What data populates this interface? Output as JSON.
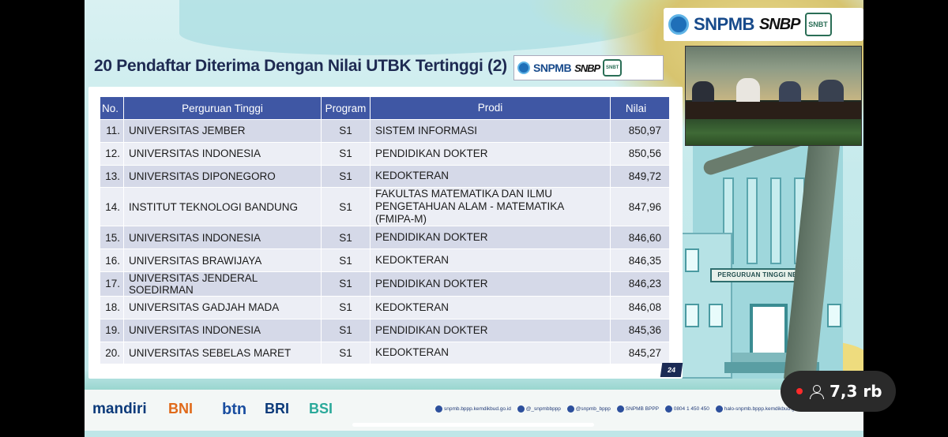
{
  "slide": {
    "title": "20 Pendaftar Diterima Dengan Nilai UTBK Tertinggi (2)",
    "page_number": "24",
    "logo": {
      "snpmb": "SNPMB",
      "snbp": "SNBP",
      "snbt": "SNBT"
    },
    "building_sign": "PERGURUAN TINGGI NEGERI",
    "table": {
      "headers": [
        "No.",
        "Perguruan Tinggi",
        "Program",
        "Prodi",
        "Nilai"
      ],
      "rows": [
        {
          "no": "11.",
          "pt": "UNIVERSITAS JEMBER",
          "program": "S1",
          "prodi": "SISTEM INFORMASI",
          "nilai": "850,97"
        },
        {
          "no": "12.",
          "pt": "UNIVERSITAS INDONESIA",
          "program": "S1",
          "prodi": "PENDIDIKAN DOKTER",
          "nilai": "850,56"
        },
        {
          "no": "13.",
          "pt": "UNIVERSITAS DIPONEGORO",
          "program": "S1",
          "prodi": "KEDOKTERAN",
          "nilai": "849,72"
        },
        {
          "no": "14.",
          "pt": "INSTITUT TEKNOLOGI BANDUNG",
          "program": "S1",
          "prodi": "FAKULTAS MATEMATIKA DAN ILMU PENGETAHUAN ALAM - MATEMATIKA (FMIPA-M)",
          "nilai": "847,96"
        },
        {
          "no": "15.",
          "pt": "UNIVERSITAS INDONESIA",
          "program": "S1",
          "prodi": "PENDIDIKAN DOKTER",
          "nilai": "846,60"
        },
        {
          "no": "16.",
          "pt": "UNIVERSITAS BRAWIJAYA",
          "program": "S1",
          "prodi": "KEDOKTERAN",
          "nilai": "846,35"
        },
        {
          "no": "17.",
          "pt": "UNIVERSITAS JENDERAL SOEDIRMAN",
          "program": "S1",
          "prodi": "PENDIDIKAN DOKTER",
          "nilai": "846,23"
        },
        {
          "no": "18.",
          "pt": "UNIVERSITAS GADJAH MADA",
          "program": "S1",
          "prodi": "KEDOKTERAN",
          "nilai": "846,08"
        },
        {
          "no": "19.",
          "pt": "UNIVERSITAS INDONESIA",
          "program": "S1",
          "prodi": "PENDIDIKAN DOKTER",
          "nilai": "845,36"
        },
        {
          "no": "20.",
          "pt": "UNIVERSITAS SEBELAS MARET",
          "program": "S1",
          "prodi": "KEDOKTERAN",
          "nilai": "845,27"
        }
      ]
    },
    "sponsors": [
      "mandiri",
      "BNI",
      "btn",
      "BRI",
      "BSI"
    ],
    "social": [
      "snpmb.bppp.kemdikbud.go.id",
      "@_snpmbbppp",
      "@snpmb_bppp",
      "SNPMB BPPP",
      "0804 1 450 450",
      "halo-snpmb.bppp.kemdikbud.go.id"
    ]
  },
  "live": {
    "viewer_count": "7,3 rb"
  },
  "colors": {
    "header_blue": "#3f57a4",
    "row_dark": "#d5d9e8",
    "row_light": "#eceef5",
    "live_dot": "#ff2b2b"
  }
}
